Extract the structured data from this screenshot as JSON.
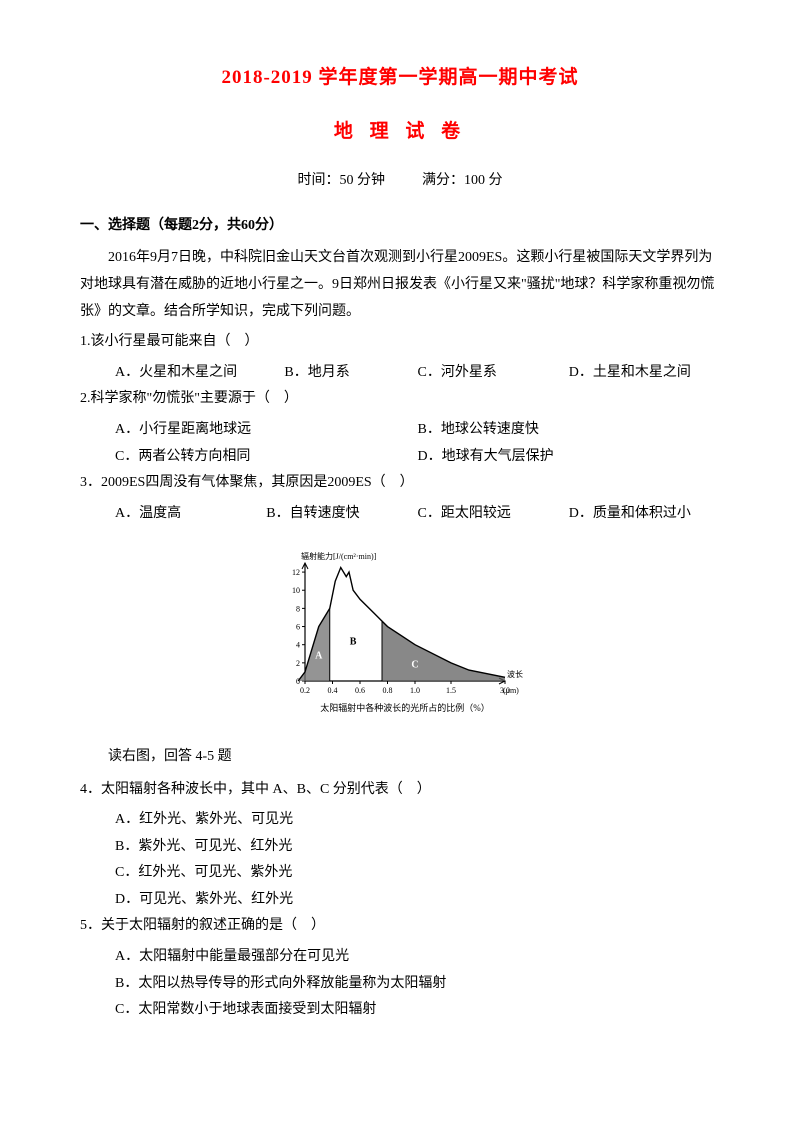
{
  "header": {
    "title_main": "2018-2019 学年度第一学期高一期中考试",
    "title_sub": "地 理 试 卷",
    "time_label": "时间：50 分钟",
    "score_label": "满分：100 分"
  },
  "section1": {
    "header": "一、选择题（每题2分，共60分）",
    "passage1": "2016年9月7日晚，中科院旧金山天文台首次观测到小行星2009ES。这颗小行星被国际天文学界列为对地球具有潜在威胁的近地小行星之一。9日郑州日报发表《小行星又来\"骚扰\"地球？科学家称重视勿慌张》的文章。结合所学知识，完成下列问题。"
  },
  "q1": {
    "stem": "1.该小行星最可能来自（　）",
    "a": "A．火星和木星之间",
    "b": "B．地月系",
    "c": "C．河外星系",
    "d": "D．土星和木星之间"
  },
  "q2": {
    "stem": "2.科学家称\"勿慌张\"主要源于（　）",
    "a": "A．小行星距离地球远",
    "b": "B．地球公转速度快",
    "c": "C．两者公转方向相同",
    "d": "D．地球有大气层保护"
  },
  "q3": {
    "stem": "3．2009ES四周没有气体聚焦，其原因是2009ES（　）",
    "a": "A．温度高",
    "b": "B．自转速度快",
    "c": "C．距太阳较远",
    "d": "D．质量和体积过小"
  },
  "figure": {
    "ylabel": "辐射能力[J/(cm²·min)]",
    "yticks": [
      "0",
      "2",
      "4",
      "6",
      "8",
      "10",
      "12"
    ],
    "xticks": [
      "0.2",
      "0.4",
      "0.6",
      "0.8",
      "1.0",
      "1.5",
      "3.0"
    ],
    "xlabel_right": "波长",
    "xunit": "(μm)",
    "caption": "太阳辐射中各种波长的光所占的比例（%）",
    "regions": [
      "A",
      "B",
      "C"
    ],
    "curve": {
      "type": "asymmetric-peak",
      "points": [
        [
          0.15,
          0
        ],
        [
          0.2,
          1
        ],
        [
          0.3,
          6
        ],
        [
          0.38,
          8
        ],
        [
          0.42,
          11
        ],
        [
          0.46,
          12.5
        ],
        [
          0.5,
          11.5
        ],
        [
          0.52,
          12
        ],
        [
          0.55,
          10
        ],
        [
          0.6,
          9
        ],
        [
          0.7,
          7.5
        ],
        [
          0.8,
          6
        ],
        [
          1.0,
          4
        ],
        [
          1.5,
          2
        ],
        [
          2.0,
          1.2
        ],
        [
          3.0,
          0.4
        ]
      ],
      "fill_boundaries": [
        0.38,
        0.76
      ],
      "peak_approx": 12.5,
      "xrange": [
        0.1,
        3.0
      ],
      "yrange": [
        0,
        13
      ]
    },
    "colors": {
      "axis": "#000000",
      "curve": "#000000",
      "fill_a": "#707070",
      "fill_c": "#606060",
      "text": "#000000"
    }
  },
  "read_fig": "读右图，回答 4-5 题",
  "q4": {
    "stem": "4．太阳辐射各种波长中，其中 A、B、C 分别代表（　）",
    "a": "A．红外光、紫外光、可见光",
    "b": "B．紫外光、可见光、红外光",
    "c": "C．红外光、可见光、紫外光",
    "d": "D．可见光、紫外光、红外光"
  },
  "q5": {
    "stem": "5．关于太阳辐射的叙述正确的是（　）",
    "a": "A．太阳辐射中能量最强部分在可见光",
    "b": "B．太阳以热导传导的形式向外释放能量称为太阳辐射",
    "c": "C．太阳常数小于地球表面接受到太阳辐射"
  }
}
